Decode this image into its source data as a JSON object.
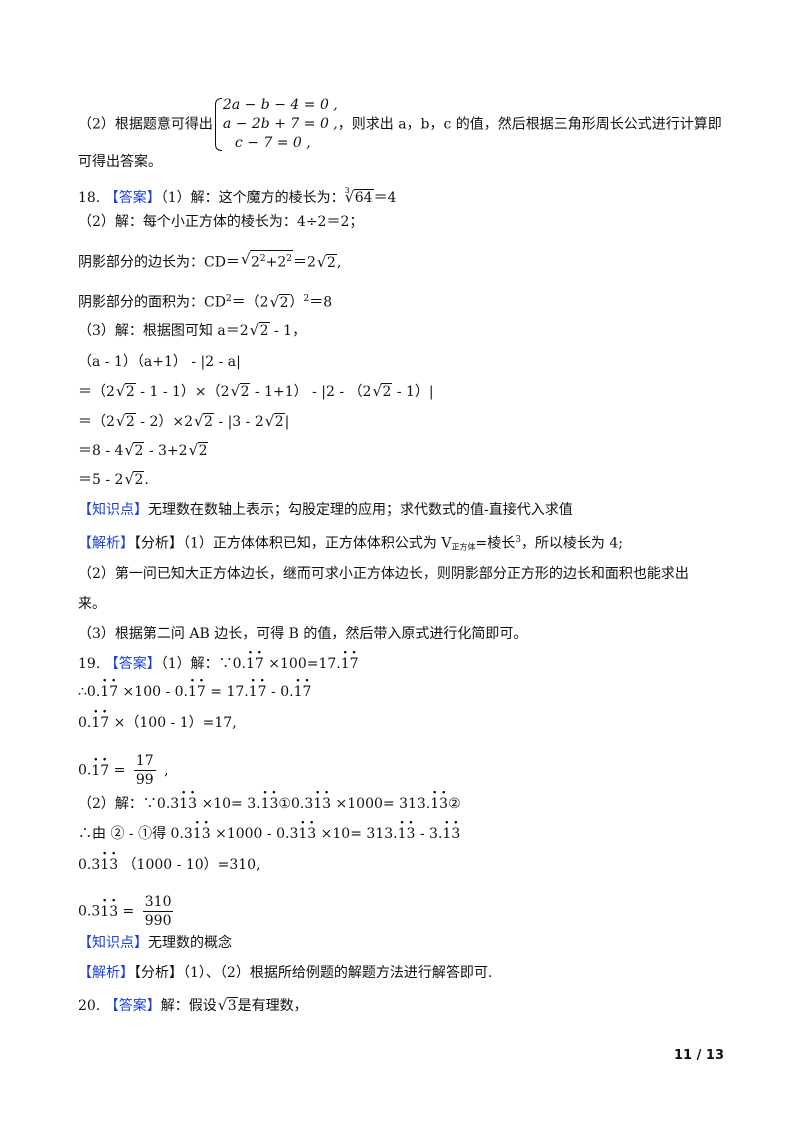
{
  "colors": {
    "tag": "#1a3fd6",
    "text": "#111111"
  },
  "lines": [
    [
      {
        "t": "（2）根据题意可得出"
      },
      {
        "sys": [
          "2a − b − 4 = 0 ,",
          "a − 2b + 7 = 0 ,",
          "c − 7 = 0 ,"
        ]
      },
      {
        "t": "，则求出 a，b，c 的值，然后根据三角形周长公式进行计算即"
      }
    ],
    [
      {
        "t": "可得出答案。"
      }
    ],
    [
      {
        "t": "18. "
      },
      {
        "tag": "【答案】"
      },
      {
        "t": "（1）解：这个魔方的棱长为："
      },
      {
        "cbrt": "64"
      },
      {
        "t": "＝4"
      }
    ],
    [
      {
        "t": "（2）解：每个小正方体的棱长为：4÷2＝2；"
      }
    ],
    [
      {
        "t": "阴影部分的边长为：CD＝"
      },
      {
        "sqhtml": [
          "2",
          "2",
          "+2",
          "2"
        ]
      },
      {
        "t": "＝2"
      },
      {
        "r": "2"
      },
      {
        "t": ","
      }
    ],
    [
      {
        "t": "阴影部分的面积为：CD"
      },
      {
        "sup": "2"
      },
      {
        "t": "＝（2"
      },
      {
        "r": "2"
      },
      {
        "t": "）"
      },
      {
        "sup": "2"
      },
      {
        "t": "＝8"
      }
    ],
    [
      {
        "t": "（3）解：根据图可知 a＝2"
      },
      {
        "r": "2"
      },
      {
        "t": " - 1，"
      }
    ],
    [
      {
        "t": "（a - 1）（a+1） - |2 - a|"
      }
    ],
    [
      {
        "t": "＝（2"
      },
      {
        "r": "2"
      },
      {
        "t": " - 1 - 1）×（2"
      },
      {
        "r": "2"
      },
      {
        "t": " - 1+1） - |2 - （2"
      },
      {
        "r": "2"
      },
      {
        "t": " - 1）|"
      }
    ],
    [
      {
        "t": "＝（2"
      },
      {
        "r": "2"
      },
      {
        "t": " - 2）×2"
      },
      {
        "r": "2"
      },
      {
        "t": " - |3 - 2"
      },
      {
        "r": "2"
      },
      {
        "t": "|"
      }
    ],
    [
      {
        "t": "＝8 - 4"
      },
      {
        "r": "2"
      },
      {
        "t": " - 3+2"
      },
      {
        "r": "2"
      }
    ],
    [
      {
        "t": "＝5 - 2"
      },
      {
        "r": "2"
      },
      {
        "t": "."
      }
    ],
    [
      {
        "tag": "【知识点】"
      },
      {
        "t": "无理数在数轴上表示；勾股定理的应用；求代数式的值-直接代入求值"
      }
    ],
    [
      {
        "tag": "【解析】"
      },
      {
        "t": "【分析】（1）正方体体积已知，正方体体积公式为 V"
      },
      {
        "sub": "正方体"
      },
      {
        "t": "=棱长"
      },
      {
        "sup": "3"
      },
      {
        "t": "，所以棱长为 4;"
      }
    ],
    [
      {
        "t": "（2）第一问已知大正方体边长，继而可求小正方体边长，则阴影部分正方形的边长和面积也能求出"
      }
    ],
    [
      {
        "t": "来。"
      }
    ],
    [
      {
        "t": "（3）根据第二问 AB 边长，可得 B 的值，然后带入原式进行化简即可。"
      }
    ],
    [
      {
        "t": "19. "
      },
      {
        "tag": "【答案】"
      },
      {
        "t": "（1）解：∵0."
      },
      {
        "rep": "17"
      },
      {
        "t": " ×100=17."
      },
      {
        "rep": "17"
      }
    ],
    [
      {
        "t": "∴0."
      },
      {
        "rep": "17"
      },
      {
        "t": " ×100 -  0."
      },
      {
        "rep": "17"
      },
      {
        "t": " = 17."
      },
      {
        "rep": "17"
      },
      {
        "t": "  -  0."
      },
      {
        "rep": "17"
      }
    ],
    [
      {
        "t": "0."
      },
      {
        "rep": "17"
      },
      {
        "t": " ×（100 - 1）=17,"
      }
    ],
    [
      {
        "t": "0."
      },
      {
        "rep": "17"
      },
      {
        "t": " = "
      },
      {
        "frac": [
          "17",
          "99"
        ]
      },
      {
        "t": " ,"
      }
    ],
    [
      {
        "t": "（2）解：∵0.3"
      },
      {
        "rep": "13"
      },
      {
        "t": " ×10= 3."
      },
      {
        "rep": "13"
      },
      {
        "t": "①0.3"
      },
      {
        "rep": "13"
      },
      {
        "t": " ×1000= 313."
      },
      {
        "rep": "13"
      },
      {
        "t": "②"
      }
    ],
    [
      {
        "t": "∴由 ② - ①得 0.3"
      },
      {
        "rep": "13"
      },
      {
        "t": " ×1000 -  0.3"
      },
      {
        "rep": "13"
      },
      {
        "t": " ×10= 313."
      },
      {
        "rep": "13"
      },
      {
        "t": "  -  3."
      },
      {
        "rep": "13"
      }
    ],
    [
      {
        "t": "0.3"
      },
      {
        "rep": "13"
      },
      {
        "t": " （1000 - 10）=310,"
      }
    ],
    [
      {
        "t": "0.3"
      },
      {
        "rep": "13"
      },
      {
        "t": " = "
      },
      {
        "frac": [
          "310",
          "990"
        ]
      }
    ],
    [
      {
        "tag": "【知识点】"
      },
      {
        "t": "无理数的概念"
      }
    ],
    [
      {
        "tag": "【解析】"
      },
      {
        "t": "【分析】（1）、（2）根据所给例题的解题方法进行解答即可."
      }
    ],
    [
      {
        "t": "20. "
      },
      {
        "tag": "【答案】"
      },
      {
        "t": "解：假设"
      },
      {
        "r": "3"
      },
      {
        "t": "是有理数，"
      }
    ]
  ],
  "page_number": "11 / 13"
}
